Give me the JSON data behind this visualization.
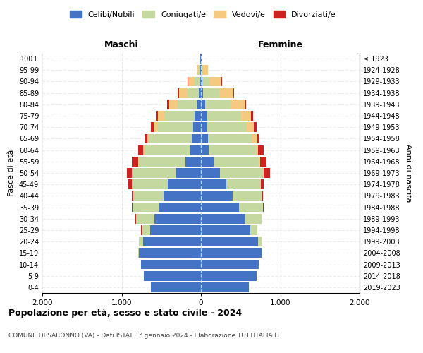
{
  "age_groups": [
    "0-4",
    "5-9",
    "10-14",
    "15-19",
    "20-24",
    "25-29",
    "30-34",
    "35-39",
    "40-44",
    "45-49",
    "50-54",
    "55-59",
    "60-64",
    "65-69",
    "70-74",
    "75-79",
    "80-84",
    "85-89",
    "90-94",
    "95-99",
    "100+"
  ],
  "birth_years": [
    "2019-2023",
    "2014-2018",
    "2009-2013",
    "2004-2008",
    "1999-2003",
    "1994-1998",
    "1989-1993",
    "1984-1988",
    "1979-1983",
    "1974-1978",
    "1969-1973",
    "1964-1968",
    "1959-1963",
    "1954-1958",
    "1949-1953",
    "1944-1948",
    "1939-1943",
    "1934-1938",
    "1929-1933",
    "1924-1928",
    "≤ 1923"
  ],
  "colors": {
    "celibe": "#4472c4",
    "coniugato": "#c5d8a0",
    "vedovo": "#f5c97f",
    "divorziato": "#cc2222"
  },
  "males": {
    "celibe": [
      630,
      720,
      760,
      780,
      730,
      640,
      590,
      530,
      470,
      420,
      310,
      200,
      130,
      120,
      100,
      80,
      50,
      30,
      20,
      10,
      5
    ],
    "coniugato": [
      0,
      0,
      0,
      10,
      50,
      110,
      230,
      330,
      380,
      450,
      560,
      580,
      580,
      530,
      450,
      380,
      250,
      150,
      60,
      15,
      2
    ],
    "vedovo": [
      0,
      0,
      0,
      0,
      0,
      0,
      0,
      0,
      0,
      5,
      5,
      10,
      20,
      30,
      50,
      80,
      100,
      100,
      80,
      30,
      2
    ],
    "divorziato": [
      0,
      0,
      0,
      0,
      0,
      5,
      10,
      15,
      20,
      40,
      60,
      80,
      60,
      30,
      30,
      30,
      30,
      15,
      5,
      2,
      0
    ]
  },
  "females": {
    "nubile": [
      600,
      700,
      730,
      760,
      720,
      620,
      560,
      480,
      400,
      320,
      240,
      160,
      100,
      90,
      80,
      70,
      50,
      30,
      20,
      10,
      5
    ],
    "coniugata": [
      0,
      0,
      0,
      5,
      40,
      90,
      200,
      300,
      360,
      430,
      540,
      570,
      590,
      560,
      500,
      430,
      320,
      200,
      90,
      20,
      2
    ],
    "vedova": [
      0,
      0,
      0,
      0,
      0,
      0,
      0,
      0,
      5,
      5,
      10,
      20,
      30,
      60,
      90,
      130,
      180,
      180,
      150,
      60,
      5
    ],
    "divorziata": [
      0,
      0,
      0,
      0,
      0,
      5,
      5,
      10,
      20,
      40,
      80,
      80,
      70,
      30,
      35,
      30,
      20,
      10,
      5,
      2,
      0
    ]
  },
  "xlim": 2000,
  "xticks": [
    -2000,
    -1000,
    0,
    1000,
    2000
  ],
  "xticklabels": [
    "2.000",
    "1.000",
    "0",
    "1.000",
    "2.000"
  ],
  "title": "Popolazione per età, sesso e stato civile - 2024",
  "subtitle": "COMUNE DI SARONNO (VA) - Dati ISTAT 1° gennaio 2024 - Elaborazione TUTTITALIA.IT",
  "ylabel": "Fasce di età",
  "ylabel_right": "Anni di nascita",
  "legend_labels": [
    "Celibi/Nubili",
    "Coniugati/e",
    "Vedovi/e",
    "Divorziati/e"
  ],
  "maschi_label": "Maschi",
  "femmine_label": "Femmine"
}
